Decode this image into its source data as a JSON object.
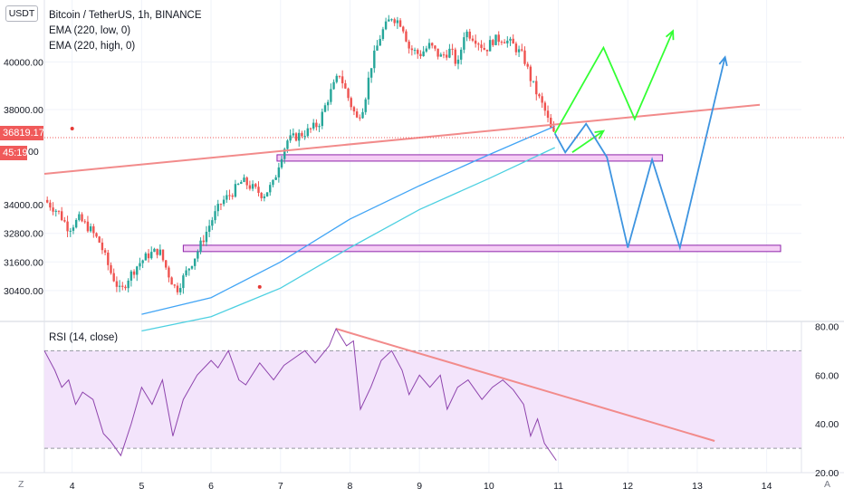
{
  "header": {
    "currency_button": "USDT",
    "title": "Bitcoin / TetherUS, 1h, BINANCE",
    "indicators": [
      "EMA (220, low, 0)",
      "EMA (220, high, 0)"
    ]
  },
  "price_badge": {
    "value": "36819.17",
    "countdown": "45:19",
    "hidden_tick": "00"
  },
  "rsi_panel": {
    "label": "RSI (14, close)"
  },
  "footer": {
    "left_button": "Z",
    "right_button": "A"
  },
  "colors": {
    "candle_up": "#26a69a",
    "candle_down": "#ef5350",
    "trendline": "#f28b8b",
    "ema_low": "#4dd0e1",
    "ema_high": "#42a5f5",
    "zone_fill": "#f3c6f3",
    "zone_border": "#8e24aa",
    "projection_green": "#33ff33",
    "projection_blue": "#3d94e0",
    "rsi_line": "#8e44ad",
    "rsi_band": "#f3e4fb",
    "current_price": "#f05a5a"
  },
  "chart_data": [
    {
      "type": "candlestick",
      "title": "Bitcoin / TetherUS, 1h, BINANCE",
      "x_tick_labels": [
        "4",
        "5",
        "6",
        "7",
        "8",
        "9",
        "10",
        "11",
        "12",
        "13",
        "14"
      ],
      "x_range": [
        3.6,
        14.5
      ],
      "y_tick_labels": [
        "30400.00",
        "31600.00",
        "32800.00",
        "34000.00",
        "38000.00",
        "40000.00"
      ],
      "ylim": [
        29100,
        42600
      ],
      "current_price": 36819.17,
      "close_path": [
        {
          "x": 3.6,
          "y": 34200
        },
        {
          "x": 3.8,
          "y": 33700
        },
        {
          "x": 3.95,
          "y": 33000
        },
        {
          "x": 4.1,
          "y": 33400
        },
        {
          "x": 4.25,
          "y": 33000
        },
        {
          "x": 4.4,
          "y": 32400
        },
        {
          "x": 4.55,
          "y": 31200
        },
        {
          "x": 4.7,
          "y": 30300
        },
        {
          "x": 4.8,
          "y": 30900
        },
        {
          "x": 4.95,
          "y": 31500
        },
        {
          "x": 5.1,
          "y": 31900
        },
        {
          "x": 5.25,
          "y": 32100
        },
        {
          "x": 5.4,
          "y": 31000
        },
        {
          "x": 5.5,
          "y": 30400
        },
        {
          "x": 5.65,
          "y": 31200
        },
        {
          "x": 5.8,
          "y": 32000
        },
        {
          "x": 6.0,
          "y": 33300
        },
        {
          "x": 6.15,
          "y": 34100
        },
        {
          "x": 6.3,
          "y": 34500
        },
        {
          "x": 6.45,
          "y": 35000
        },
        {
          "x": 6.6,
          "y": 34700
        },
        {
          "x": 6.75,
          "y": 34400
        },
        {
          "x": 6.9,
          "y": 34900
        },
        {
          "x": 7.0,
          "y": 36000
        },
        {
          "x": 7.1,
          "y": 36700
        },
        {
          "x": 7.25,
          "y": 36900
        },
        {
          "x": 7.4,
          "y": 37100
        },
        {
          "x": 7.55,
          "y": 37400
        },
        {
          "x": 7.7,
          "y": 38600
        },
        {
          "x": 7.85,
          "y": 39500
        },
        {
          "x": 8.0,
          "y": 38300
        },
        {
          "x": 8.1,
          "y": 37600
        },
        {
          "x": 8.2,
          "y": 38200
        },
        {
          "x": 8.3,
          "y": 39800
        },
        {
          "x": 8.45,
          "y": 41200
        },
        {
          "x": 8.6,
          "y": 41900
        },
        {
          "x": 8.75,
          "y": 41600
        },
        {
          "x": 8.85,
          "y": 40600
        },
        {
          "x": 9.0,
          "y": 40300
        },
        {
          "x": 9.15,
          "y": 40700
        },
        {
          "x": 9.3,
          "y": 40200
        },
        {
          "x": 9.45,
          "y": 40500
        },
        {
          "x": 9.55,
          "y": 39800
        },
        {
          "x": 9.65,
          "y": 41300
        },
        {
          "x": 9.8,
          "y": 41000
        },
        {
          "x": 9.95,
          "y": 40500
        },
        {
          "x": 10.05,
          "y": 40900
        },
        {
          "x": 10.2,
          "y": 41000
        },
        {
          "x": 10.35,
          "y": 40700
        },
        {
          "x": 10.5,
          "y": 40200
        },
        {
          "x": 10.6,
          "y": 39300
        },
        {
          "x": 10.7,
          "y": 38600
        },
        {
          "x": 10.8,
          "y": 38000
        },
        {
          "x": 10.9,
          "y": 37100
        },
        {
          "x": 10.97,
          "y": 36800
        }
      ],
      "ema_220_low": [
        {
          "x": 5.0,
          "y": 28700
        },
        {
          "x": 6.0,
          "y": 29300
        },
        {
          "x": 7.0,
          "y": 30500
        },
        {
          "x": 8.0,
          "y": 32200
        },
        {
          "x": 9.0,
          "y": 33800
        },
        {
          "x": 10.0,
          "y": 35100
        },
        {
          "x": 10.95,
          "y": 36400
        }
      ],
      "ema_220_high": [
        {
          "x": 5.0,
          "y": 29400
        },
        {
          "x": 6.0,
          "y": 30100
        },
        {
          "x": 7.0,
          "y": 31600
        },
        {
          "x": 8.0,
          "y": 33400
        },
        {
          "x": 9.0,
          "y": 34800
        },
        {
          "x": 10.0,
          "y": 36100
        },
        {
          "x": 10.95,
          "y": 37300
        }
      ],
      "trendline": [
        {
          "x": 3.6,
          "y": 35300
        },
        {
          "x": 13.9,
          "y": 38200
        }
      ],
      "support_zones": [
        {
          "x_start": 6.95,
          "x_end": 12.5,
          "y_low": 35900,
          "y_high": 36100
        },
        {
          "x_start": 5.6,
          "x_end": 14.2,
          "y_low": 32050,
          "y_high": 32300
        }
      ],
      "projection_green": [
        [
          {
            "x": 10.95,
            "y": 37000
          },
          {
            "x": 11.65,
            "y": 40600
          },
          {
            "x": 12.1,
            "y": 37600
          },
          {
            "x": 12.65,
            "y": 41300
          }
        ],
        [
          {
            "x": 11.2,
            "y": 36200
          },
          {
            "x": 11.65,
            "y": 37100
          }
        ]
      ],
      "projection_blue": [
        [
          {
            "x": 10.95,
            "y": 37000
          },
          {
            "x": 11.1,
            "y": 36200
          },
          {
            "x": 11.4,
            "y": 37400
          },
          {
            "x": 11.7,
            "y": 36000
          },
          {
            "x": 12.0,
            "y": 32200
          },
          {
            "x": 12.35,
            "y": 35900
          },
          {
            "x": 12.75,
            "y": 32200
          },
          {
            "x": 13.4,
            "y": 40200
          }
        ]
      ]
    },
    {
      "type": "line",
      "title": "RSI (14, close)",
      "y_tick_labels": [
        "80.00",
        "60.00",
        "40.00",
        "20.00"
      ],
      "ylim": [
        20,
        82
      ],
      "band": [
        30,
        70
      ],
      "rsi": [
        {
          "x": 3.6,
          "y": 70
        },
        {
          "x": 3.75,
          "y": 62
        },
        {
          "x": 3.85,
          "y": 55
        },
        {
          "x": 3.95,
          "y": 58
        },
        {
          "x": 4.05,
          "y": 48
        },
        {
          "x": 4.15,
          "y": 53
        },
        {
          "x": 4.3,
          "y": 50
        },
        {
          "x": 4.45,
          "y": 36
        },
        {
          "x": 4.55,
          "y": 33
        },
        {
          "x": 4.7,
          "y": 27
        },
        {
          "x": 4.85,
          "y": 40
        },
        {
          "x": 5.0,
          "y": 55
        },
        {
          "x": 5.15,
          "y": 48
        },
        {
          "x": 5.3,
          "y": 58
        },
        {
          "x": 5.45,
          "y": 35
        },
        {
          "x": 5.6,
          "y": 50
        },
        {
          "x": 5.8,
          "y": 60
        },
        {
          "x": 6.0,
          "y": 66
        },
        {
          "x": 6.1,
          "y": 63
        },
        {
          "x": 6.25,
          "y": 70
        },
        {
          "x": 6.4,
          "y": 58
        },
        {
          "x": 6.5,
          "y": 56
        },
        {
          "x": 6.7,
          "y": 65
        },
        {
          "x": 6.9,
          "y": 58
        },
        {
          "x": 7.05,
          "y": 64
        },
        {
          "x": 7.2,
          "y": 67
        },
        {
          "x": 7.35,
          "y": 70
        },
        {
          "x": 7.5,
          "y": 65
        },
        {
          "x": 7.7,
          "y": 72
        },
        {
          "x": 7.8,
          "y": 79
        },
        {
          "x": 7.95,
          "y": 72
        },
        {
          "x": 8.05,
          "y": 74
        },
        {
          "x": 8.15,
          "y": 46
        },
        {
          "x": 8.3,
          "y": 55
        },
        {
          "x": 8.45,
          "y": 66
        },
        {
          "x": 8.6,
          "y": 70
        },
        {
          "x": 8.75,
          "y": 62
        },
        {
          "x": 8.85,
          "y": 52
        },
        {
          "x": 9.0,
          "y": 60
        },
        {
          "x": 9.15,
          "y": 55
        },
        {
          "x": 9.3,
          "y": 60
        },
        {
          "x": 9.4,
          "y": 46
        },
        {
          "x": 9.55,
          "y": 55
        },
        {
          "x": 9.7,
          "y": 58
        },
        {
          "x": 9.9,
          "y": 50
        },
        {
          "x": 10.05,
          "y": 55
        },
        {
          "x": 10.2,
          "y": 58
        },
        {
          "x": 10.35,
          "y": 54
        },
        {
          "x": 10.5,
          "y": 48
        },
        {
          "x": 10.6,
          "y": 35
        },
        {
          "x": 10.7,
          "y": 42
        },
        {
          "x": 10.8,
          "y": 32
        },
        {
          "x": 10.97,
          "y": 25
        }
      ],
      "trendline": [
        {
          "x": 7.8,
          "y": 79
        },
        {
          "x": 13.25,
          "y": 33
        }
      ]
    }
  ]
}
